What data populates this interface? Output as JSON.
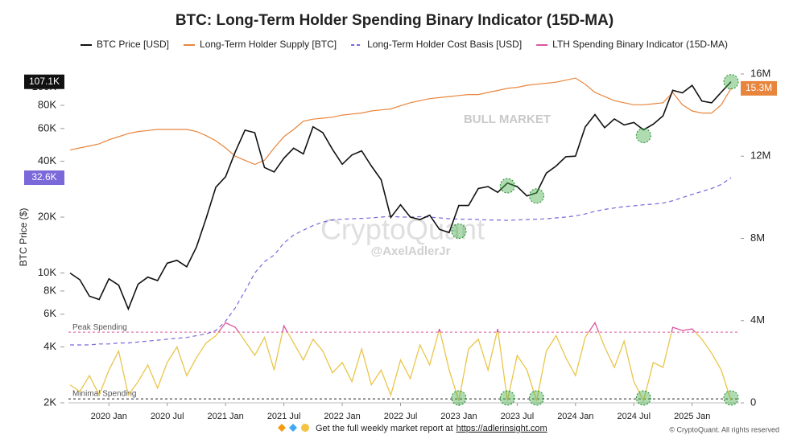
{
  "chart_data": {
    "type": "line",
    "title": "BTC: Long-Term Holder Spending Binary Indicator (15D-MA)",
    "ylabel": "BTC Price ($)",
    "log_y": true,
    "x": [
      "2019 Sep",
      "2019 Oct",
      "2019 Nov",
      "2019 Dec",
      "2020 Jan",
      "2020 Feb",
      "2020 Mar",
      "2020 Apr",
      "2020 May",
      "2020 Jun",
      "2020 Jul",
      "2020 Aug",
      "2020 Sep",
      "2020 Oct",
      "2020 Nov",
      "2020 Dec",
      "2021 Jan",
      "2021 Feb",
      "2021 Mar",
      "2021 Apr",
      "2021 May",
      "2021 Jun",
      "2021 Jul",
      "2021 Aug",
      "2021 Sep",
      "2021 Oct",
      "2021 Nov",
      "2021 Dec",
      "2022 Jan",
      "2022 Feb",
      "2022 Mar",
      "2022 Apr",
      "2022 May",
      "2022 Jun",
      "2022 Jul",
      "2022 Aug",
      "2022 Sep",
      "2022 Oct",
      "2022 Nov",
      "2022 Dec",
      "2023 Jan",
      "2023 Feb",
      "2023 Mar",
      "2023 Apr",
      "2023 May",
      "2023 Jun",
      "2023 Jul",
      "2023 Aug",
      "2023 Sep",
      "2023 Oct",
      "2023 Nov",
      "2023 Dec",
      "2024 Jan",
      "2024 Feb",
      "2024 Mar",
      "2024 Apr",
      "2024 May",
      "2024 Jun",
      "2024 Jul",
      "2024 Aug",
      "2024 Sep",
      "2024 Oct",
      "2024 Nov",
      "2024 Dec",
      "2025 Jan",
      "2025 Feb",
      "2025 Mar",
      "2025 Apr",
      "2025 May"
    ],
    "xticks": [
      "2020 Jan",
      "2020 Jul",
      "2021 Jan",
      "2021 Jul",
      "2022 Jan",
      "2022 Jul",
      "2023 Jan",
      "2023 Jul",
      "2024 Jan",
      "2024 Jul",
      "2025 Jan"
    ],
    "ylim": [
      2000,
      118000
    ],
    "yticks": [
      {
        "value": 2000,
        "label": "2K"
      },
      {
        "value": 4000,
        "label": "4K"
      },
      {
        "value": 6000,
        "label": "6K"
      },
      {
        "value": 8000,
        "label": "8K"
      },
      {
        "value": 10000,
        "label": "10K"
      },
      {
        "value": 20000,
        "label": "20K"
      },
      {
        "value": 40000,
        "label": "40K"
      },
      {
        "value": 60000,
        "label": "60K"
      },
      {
        "value": 80000,
        "label": "80K"
      },
      {
        "value": 100000,
        "label": "100K"
      }
    ],
    "y2lim": [
      0,
      16000000
    ],
    "y2ticks": [
      {
        "value": 0,
        "label": "0"
      },
      {
        "value": 4000000,
        "label": "4M"
      },
      {
        "value": 8000000,
        "label": "8M"
      },
      {
        "value": 12000000,
        "label": "12M"
      },
      {
        "value": 16000000,
        "label": "16M"
      }
    ],
    "series": [
      {
        "name": "BTC Price [USD]",
        "color": "#111111",
        "axis": "y",
        "values": [
          10000,
          9200,
          7500,
          7200,
          9300,
          8600,
          6400,
          8700,
          9500,
          9100,
          11300,
          11700,
          10800,
          13800,
          19700,
          29000,
          33000,
          45000,
          58800,
          57000,
          37000,
          35000,
          41500,
          47000,
          43800,
          61300,
          57000,
          46300,
          38500,
          43200,
          45500,
          37700,
          31800,
          19900,
          23300,
          20000,
          19400,
          20500,
          17200,
          16500,
          23100,
          23100,
          28500,
          29200,
          27200,
          30500,
          29200,
          26000,
          27000,
          34500,
          37700,
          42300,
          42600,
          61200,
          71300,
          60600,
          67500,
          62700,
          64600,
          59000,
          63300,
          70200,
          96400,
          93400,
          102400,
          84300,
          82500,
          94200,
          107100
        ],
        "value_labels": [
          null,
          null,
          null,
          null,
          null,
          null,
          null,
          null,
          null,
          null,
          null,
          null,
          null,
          null,
          null,
          null,
          null,
          null,
          null,
          null,
          null,
          null,
          null,
          null,
          null,
          null,
          null,
          null,
          null,
          null,
          null,
          null,
          null,
          null,
          null,
          null,
          null,
          null,
          null,
          null,
          null,
          null,
          null,
          null,
          null,
          null,
          null,
          null,
          null,
          null,
          null,
          null,
          null,
          null,
          null,
          null,
          null,
          null,
          null,
          null,
          null,
          null,
          null,
          null,
          null,
          null,
          null,
          null,
          "107.1K"
        ]
      },
      {
        "name": "Long-Term Holder Supply [BTC]",
        "color": "#e8853d",
        "axis": "y2",
        "values": [
          12300000,
          12400000,
          12500000,
          12600000,
          12800000,
          12950000,
          13100000,
          13200000,
          13250000,
          13300000,
          13300000,
          13300000,
          13300000,
          13200000,
          13000000,
          12750000,
          12400000,
          12000000,
          11800000,
          11600000,
          11800000,
          12400000,
          12950000,
          13300000,
          13700000,
          13800000,
          13850000,
          13900000,
          14000000,
          14050000,
          14100000,
          14200000,
          14250000,
          14300000,
          14450000,
          14600000,
          14700000,
          14800000,
          14850000,
          14900000,
          14950000,
          15000000,
          15000000,
          15100000,
          15200000,
          15300000,
          15350000,
          15450000,
          15500000,
          15550000,
          15600000,
          15700000,
          15800000,
          15500000,
          15100000,
          14900000,
          14700000,
          14600000,
          14500000,
          14500000,
          14550000,
          14600000,
          15100000,
          14500000,
          14200000,
          14100000,
          14100000,
          14500000,
          15300000
        ],
        "value_labels": [
          null,
          null,
          null,
          null,
          null,
          null,
          null,
          null,
          null,
          null,
          null,
          null,
          null,
          null,
          null,
          null,
          null,
          null,
          null,
          null,
          null,
          null,
          null,
          null,
          null,
          null,
          null,
          null,
          null,
          null,
          null,
          null,
          null,
          null,
          null,
          null,
          null,
          null,
          null,
          null,
          null,
          null,
          null,
          null,
          null,
          null,
          null,
          null,
          null,
          null,
          null,
          null,
          null,
          null,
          null,
          null,
          null,
          null,
          null,
          null,
          null,
          null,
          null,
          null,
          null,
          null,
          null,
          null,
          "15.3M"
        ]
      },
      {
        "name": "Long-Term Holder Cost Basis [USD]",
        "color": "#7b68d9",
        "axis": "y",
        "dash": true,
        "values": [
          4100,
          4100,
          4100,
          4150,
          4150,
          4200,
          4200,
          4250,
          4300,
          4350,
          4400,
          4450,
          4500,
          4600,
          4700,
          4900,
          5500,
          6500,
          8000,
          10000,
          11500,
          12500,
          14500,
          16000,
          17000,
          18000,
          18800,
          19300,
          19500,
          19600,
          19700,
          19800,
          20000,
          20200,
          20000,
          20000,
          20100,
          20000,
          19800,
          19600,
          19500,
          19500,
          19400,
          19300,
          19300,
          19200,
          19300,
          19400,
          19500,
          19600,
          19800,
          20000,
          20300,
          20800,
          21500,
          22000,
          22400,
          22800,
          23000,
          23300,
          23500,
          23800,
          24500,
          25500,
          26500,
          27500,
          28500,
          30000,
          32600
        ],
        "value_labels": [
          null,
          null,
          null,
          null,
          null,
          null,
          null,
          null,
          null,
          null,
          null,
          null,
          null,
          null,
          null,
          null,
          null,
          null,
          null,
          null,
          null,
          null,
          null,
          null,
          null,
          null,
          null,
          null,
          null,
          null,
          null,
          null,
          null,
          null,
          null,
          null,
          null,
          null,
          null,
          null,
          null,
          null,
          null,
          null,
          null,
          null,
          null,
          null,
          null,
          null,
          null,
          null,
          null,
          null,
          null,
          null,
          null,
          null,
          null,
          null,
          null,
          null,
          null,
          null,
          null,
          null,
          null,
          null,
          "32.6K"
        ]
      },
      {
        "name": "LTH Spending Binary Indicator (15D-MA)",
        "color": "#d9559e",
        "low_color": "#e9c54a",
        "axis": "y",
        "values": [
          2500,
          2300,
          2800,
          2200,
          3000,
          3800,
          2200,
          2600,
          3200,
          2400,
          3300,
          4000,
          2800,
          3500,
          4200,
          4600,
          5400,
          5100,
          4300,
          3600,
          4500,
          3000,
          5200,
          4200,
          3400,
          4400,
          3800,
          2900,
          3300,
          2600,
          3900,
          2500,
          3000,
          2200,
          3400,
          2700,
          4100,
          3200,
          5000,
          3000,
          2050,
          3900,
          4400,
          3000,
          5000,
          2050,
          3600,
          3000,
          2050,
          3800,
          4600,
          3500,
          2800,
          4500,
          5400,
          4000,
          3100,
          4300,
          2600,
          2050,
          3300,
          3100,
          5100,
          4900,
          5000,
          4400,
          3700,
          3000,
          2050
        ]
      }
    ],
    "reference_lines": [
      {
        "label": "Peak Spending",
        "value": 4800,
        "color": "#d9559e"
      },
      {
        "label": "Minimal Spending",
        "value": 2100,
        "color": "#222222"
      }
    ],
    "signals": [
      {
        "x": "2023 Jan",
        "y": 16800
      },
      {
        "x": "2023 Jun",
        "y": 29500
      },
      {
        "x": "2023 Sep",
        "y": 26000
      },
      {
        "x": "2024 Aug",
        "y": 55000
      },
      {
        "x": "2025 May",
        "y": 107100
      }
    ],
    "signal_color": "#4caf50",
    "annotations": {
      "regime": "BULL MARKET",
      "watermark": "CryptoQuant",
      "handle": "@AxelAdlerJr"
    },
    "footer": {
      "text": "Get the full weekly market report at",
      "link": "https://adlerinsight.com",
      "copyright": "© CryptoQuant. All rights reserved"
    }
  }
}
